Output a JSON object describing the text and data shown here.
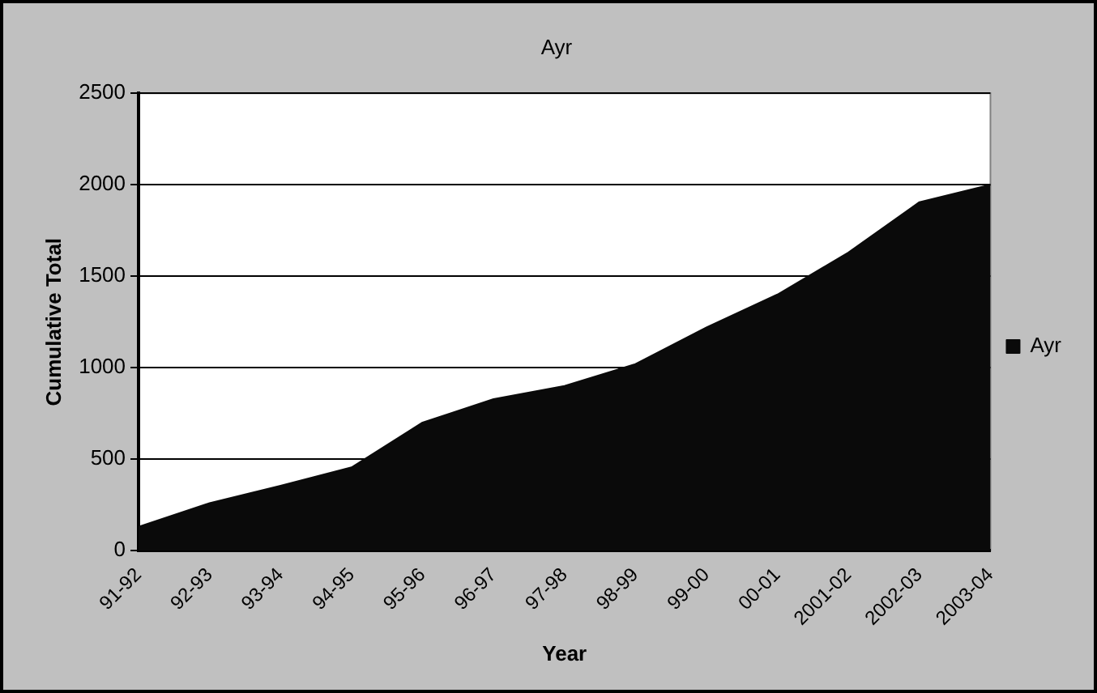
{
  "chart_data": {
    "type": "area",
    "title": "Ayr",
    "xlabel": "Year",
    "ylabel": "Cumulative Total",
    "categories": [
      "91-92",
      "92-93",
      "93-94",
      "94-95",
      "95-96",
      "96-97",
      "97-98",
      "98-99",
      "99-00",
      "00-01",
      "2001-02",
      "2002-03",
      "2003-04"
    ],
    "series": [
      {
        "name": "Ayr",
        "color": "#0a0a0a",
        "values": [
          130,
          260,
          355,
          455,
          700,
          828,
          900,
          1020,
          1220,
          1400,
          1630,
          1905,
          2000
        ]
      }
    ],
    "ylim": [
      0,
      2500
    ],
    "yticks": [
      0,
      500,
      1000,
      1500,
      2000,
      2500
    ],
    "grid": "y",
    "legend": "right"
  }
}
